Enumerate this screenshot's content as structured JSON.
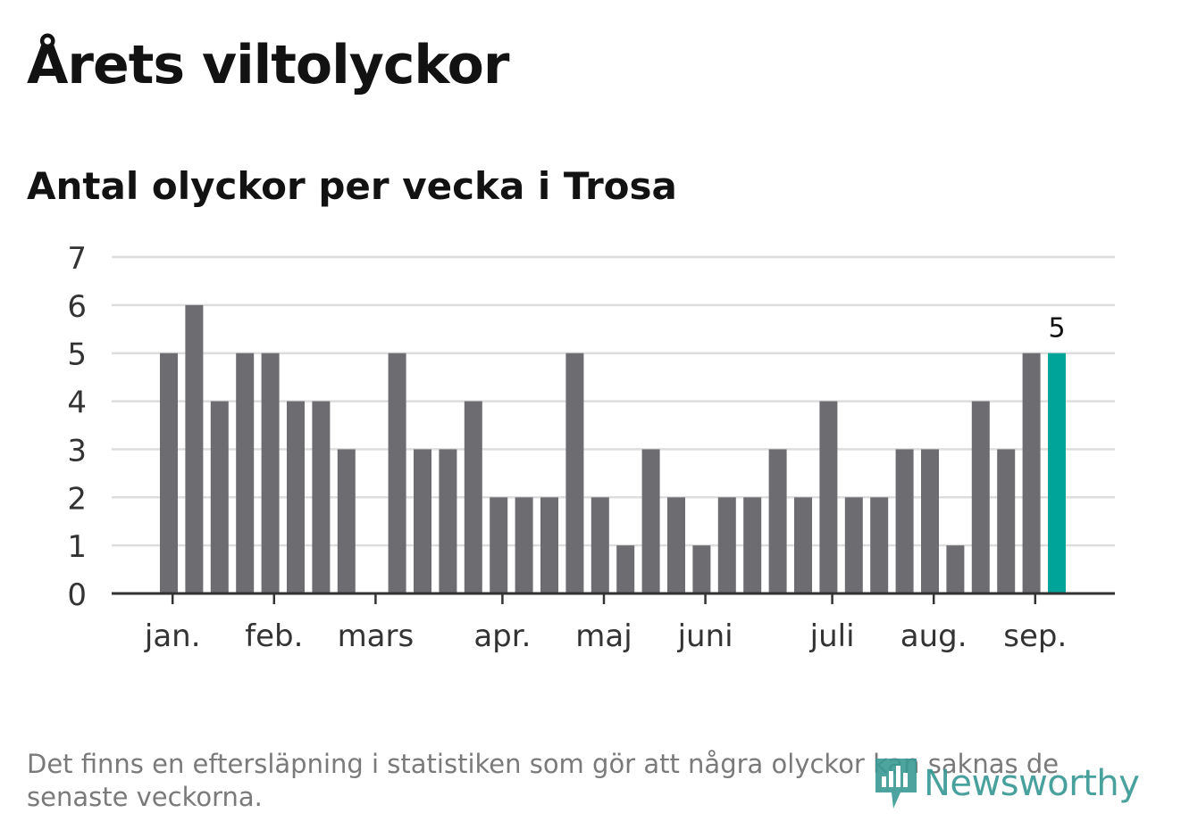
{
  "header": {
    "title": "Årets viltolyckor",
    "subtitle": "Antal olyckor per vecka i Trosa"
  },
  "footer": {
    "note": "Det finns en eftersläpning i statistiken som gör att några olyckor kan saknas de senaste veckorna.",
    "brand": "Newsworthy",
    "brand_icon": "bar-chart-icon"
  },
  "colors": {
    "bar": "#6d6c71",
    "highlight": "#00a499",
    "grid": "#dddddd",
    "axis": "#333333",
    "text": "#333333",
    "brand": "#3a9a95"
  },
  "chart_data": {
    "type": "bar",
    "ylim": [
      0,
      7
    ],
    "y_ticks": [
      0,
      1,
      2,
      3,
      4,
      5,
      6,
      7
    ],
    "grid": true,
    "values": [
      5,
      6,
      4,
      5,
      5,
      4,
      4,
      3,
      0,
      5,
      3,
      3,
      4,
      2,
      2,
      2,
      5,
      2,
      1,
      3,
      2,
      1,
      2,
      2,
      3,
      2,
      4,
      2,
      2,
      3,
      3,
      1,
      4,
      3,
      5,
      5
    ],
    "highlight_index": 35,
    "highlight_label": "5",
    "month_labels": [
      {
        "label": "jan.",
        "at_bar": 0.5
      },
      {
        "label": "feb.",
        "at_bar": 4.5
      },
      {
        "label": "mars",
        "at_bar": 8.5
      },
      {
        "label": "apr.",
        "at_bar": 13.5
      },
      {
        "label": "maj",
        "at_bar": 17.5
      },
      {
        "label": "juni",
        "at_bar": 21.5
      },
      {
        "label": "juli",
        "at_bar": 26.5
      },
      {
        "label": "aug.",
        "at_bar": 30.5
      },
      {
        "label": "sep.",
        "at_bar": 34.5
      }
    ]
  }
}
